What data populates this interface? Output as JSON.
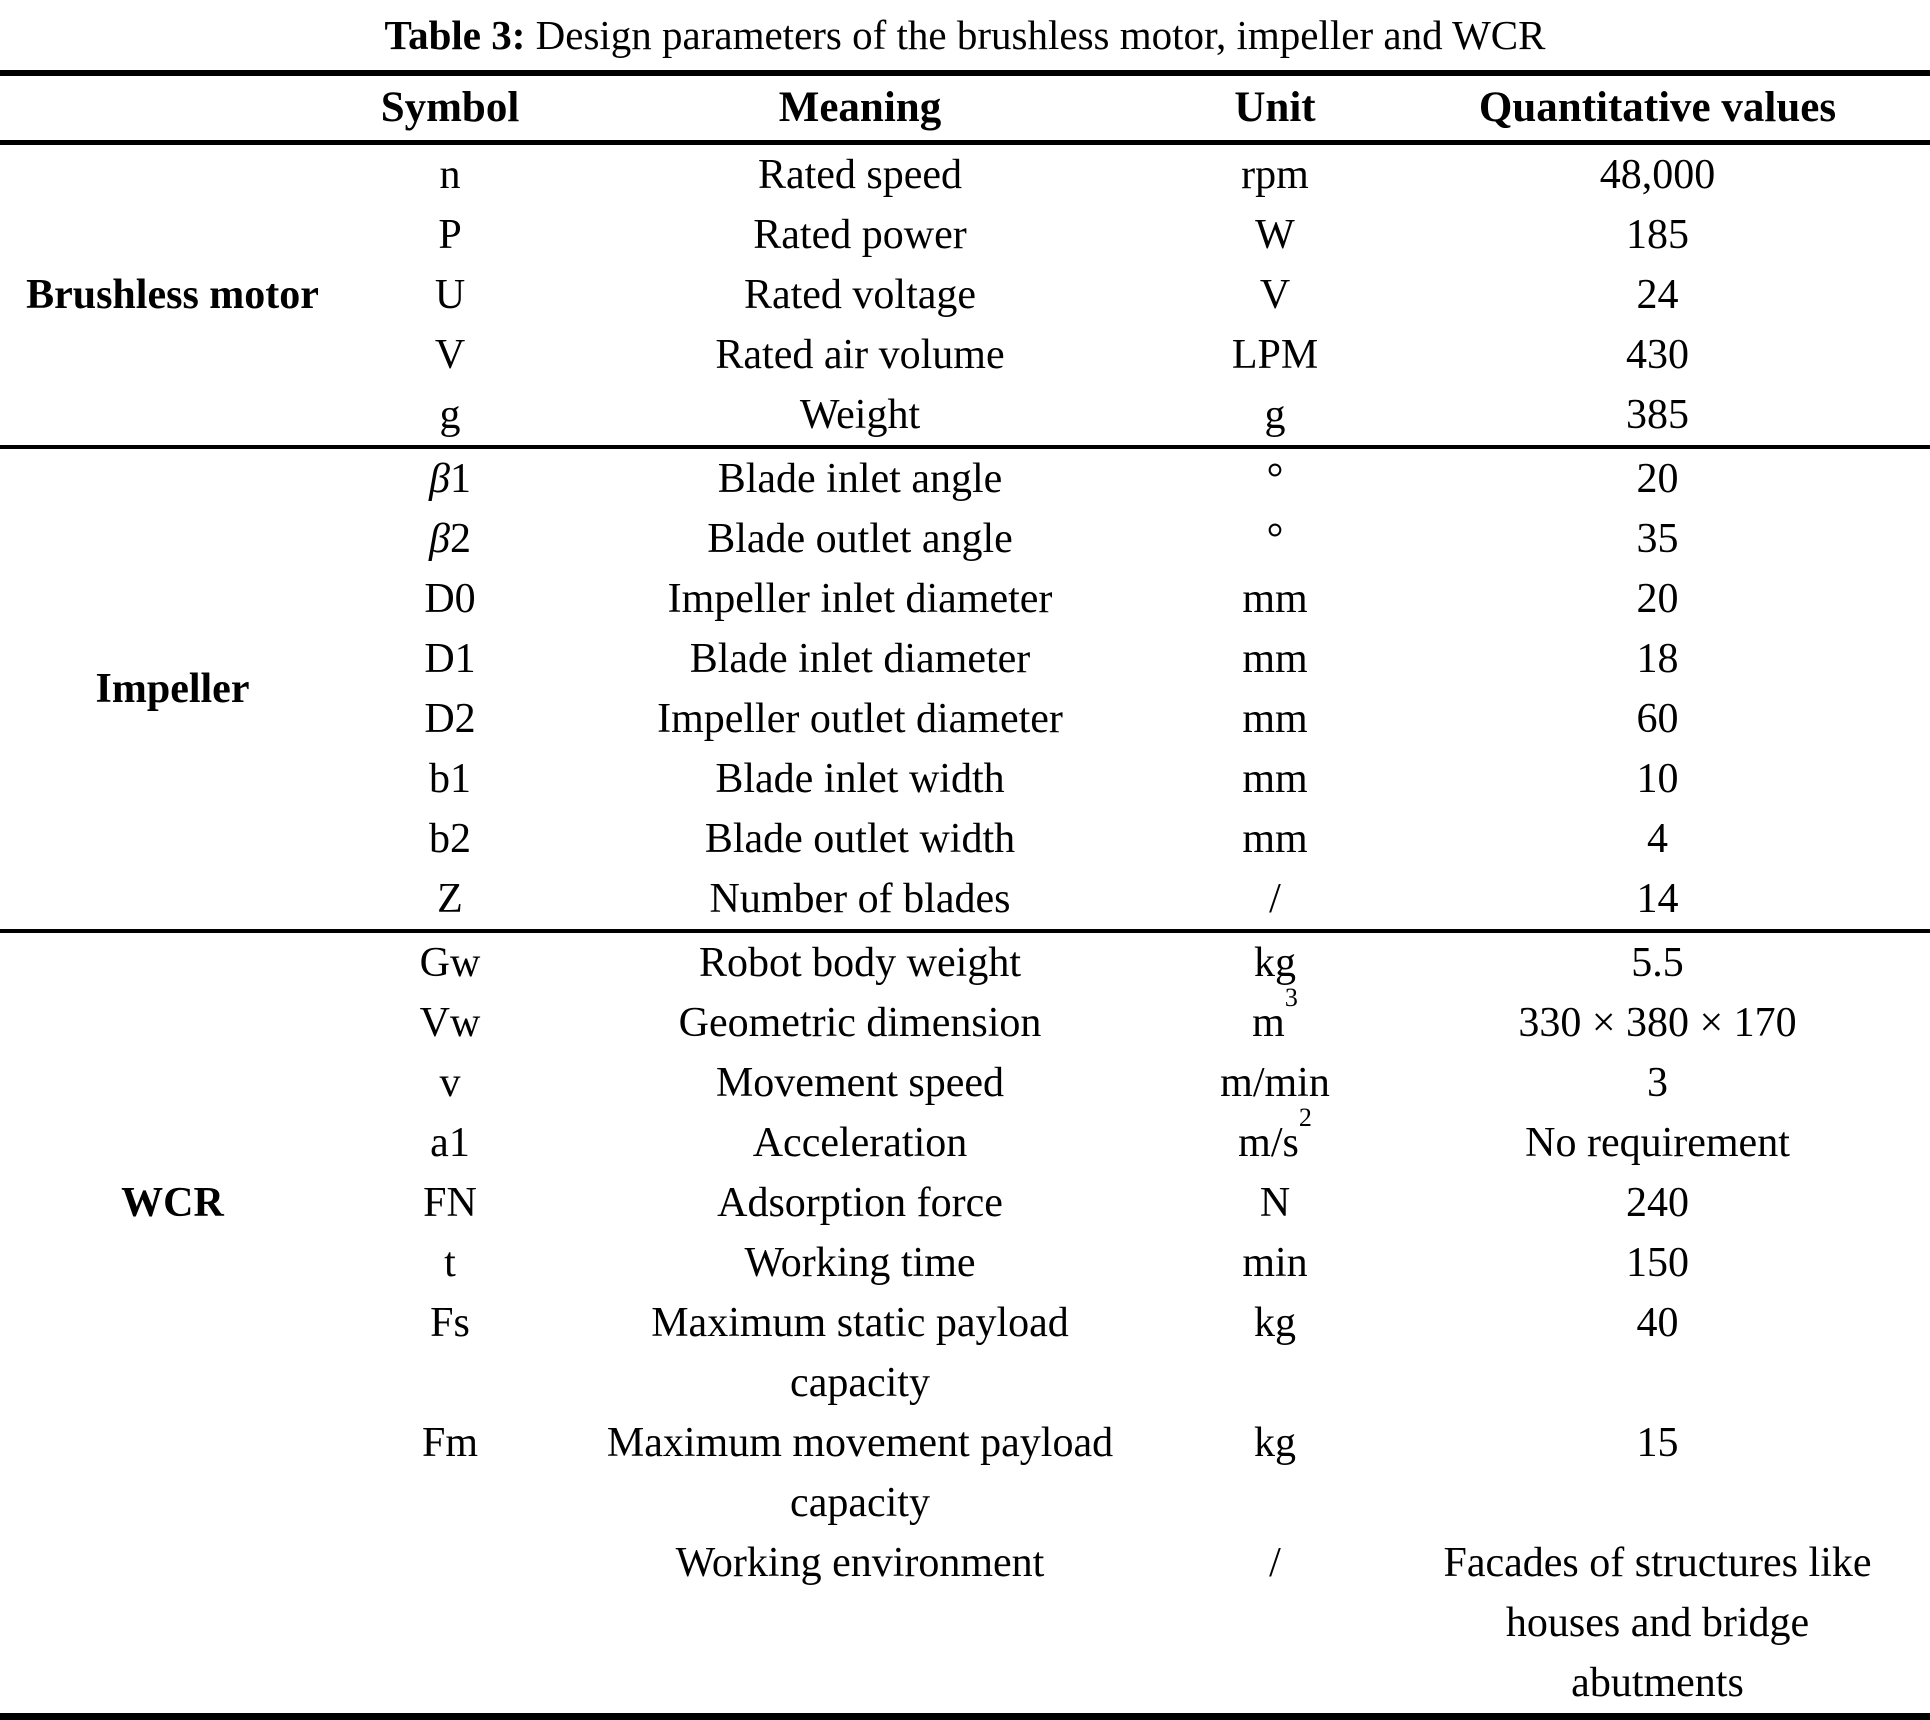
{
  "title": {
    "label": "Table 3:",
    "text": " Design parameters of the brushless motor, impeller and WCR"
  },
  "columns": {
    "category": "",
    "symbol": "Symbol",
    "meaning": "Meaning",
    "unit": "Unit",
    "values": "Quantitative values"
  },
  "sections": [
    {
      "category": "Brushless motor",
      "rows": [
        {
          "symbol": "n",
          "meaning": "Rated speed",
          "unit": "rpm",
          "value": "48,000"
        },
        {
          "symbol": "P",
          "meaning": "Rated power",
          "unit": "W",
          "value": "185"
        },
        {
          "symbol": "U",
          "meaning": "Rated voltage",
          "unit": "V",
          "value": "24"
        },
        {
          "symbol": "V",
          "meaning": "Rated air volume",
          "unit": "LPM",
          "value": "430"
        },
        {
          "symbol": "g",
          "meaning": "Weight",
          "unit": "g",
          "value": "385"
        }
      ]
    },
    {
      "category": "Impeller",
      "rows": [
        {
          "symbol_italic": "β",
          "symbol": "1",
          "meaning": "Blade inlet angle",
          "unit": "°",
          "value": "20"
        },
        {
          "symbol_italic": "β",
          "symbol": "2",
          "meaning": "Blade outlet angle",
          "unit": "°",
          "value": "35"
        },
        {
          "symbol": "D0",
          "meaning": "Impeller inlet diameter",
          "unit": "mm",
          "value": "20"
        },
        {
          "symbol": "D1",
          "meaning": "Blade inlet diameter",
          "unit": "mm",
          "value": "18"
        },
        {
          "symbol": "D2",
          "meaning": "Impeller outlet diameter",
          "unit": "mm",
          "value": "60"
        },
        {
          "symbol": "b1",
          "meaning": "Blade inlet width",
          "unit": "mm",
          "value": "10"
        },
        {
          "symbol": "b2",
          "meaning": "Blade outlet width",
          "unit": "mm",
          "value": "4"
        },
        {
          "symbol": "Z",
          "meaning": "Number of blades",
          "unit": "/",
          "value": "14"
        }
      ]
    },
    {
      "category": "WCR",
      "rows": [
        {
          "symbol": "Gw",
          "meaning": "Robot body weight",
          "unit": "kg",
          "value": "5.5"
        },
        {
          "symbol": "Vw",
          "meaning": "Geometric dimension",
          "unit": "m",
          "unit_sup": "3",
          "value": "330 × 380 × 170"
        },
        {
          "symbol": "v",
          "meaning": "Movement speed",
          "unit": "m/min",
          "value": "3"
        },
        {
          "symbol": "a1",
          "meaning": "Acceleration",
          "unit": "m/s",
          "unit_sup": "2",
          "value": "No requirement"
        },
        {
          "symbol": "FN",
          "meaning": "Adsorption force",
          "unit": "N",
          "value": "240"
        },
        {
          "symbol": "t",
          "meaning": "Working time",
          "unit": "min",
          "value": "150"
        },
        {
          "symbol": "Fs",
          "meaning": "Maximum static payload\ncapacity",
          "unit": "kg",
          "value": "40"
        },
        {
          "symbol": "Fm",
          "meaning": "Maximum movement payload\ncapacity",
          "unit": "kg",
          "value": "15"
        },
        {
          "symbol": "",
          "meaning": "Working environment",
          "unit": "/",
          "value": "Facades of structures like\nhouses and bridge\nabutments"
        }
      ]
    }
  ]
}
